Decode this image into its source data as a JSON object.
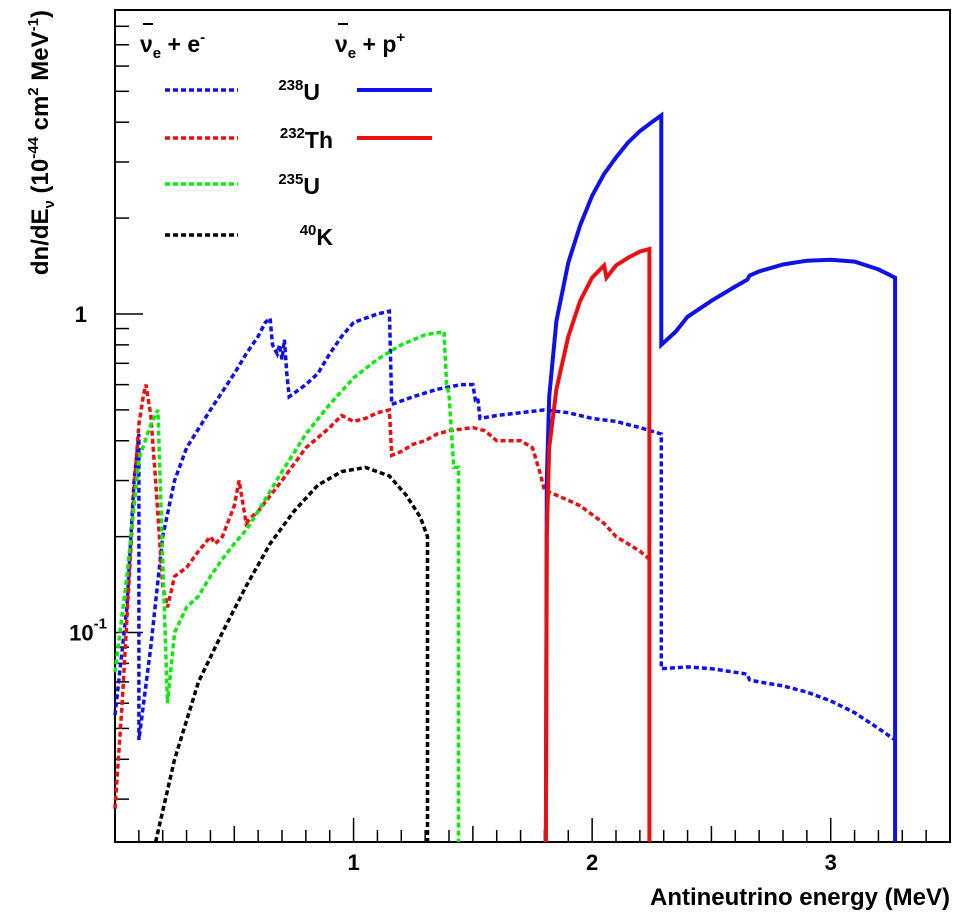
{
  "chart_data": {
    "type": "line",
    "xlabel": "Antineutrino energy (MeV)",
    "ylabel_parts": {
      "main": "dn/dE",
      "sub": "ν",
      "mid": " (10",
      "exp1": "-44",
      "cm": " cm",
      "exp2": "2",
      "mev": " MeV",
      "exp3": "-1",
      "end": ")"
    },
    "xlim": [
      0.0,
      3.5
    ],
    "ylim": [
      0.022,
      9.0
    ],
    "yscale": "log",
    "x_ticks": [
      {
        "value": 1,
        "label": "1"
      },
      {
        "value": 2,
        "label": "2"
      },
      {
        "value": 3,
        "label": "3"
      }
    ],
    "y_ticks": [
      {
        "value": 1,
        "label": "1"
      },
      {
        "value": 0.1,
        "label": "10",
        "exp": "-1"
      }
    ],
    "legend": {
      "position": "top-left",
      "col_headers": [
        {
          "base": "ν",
          "sub": "e",
          "rest": " + e",
          "sup": "-"
        },
        {
          "base": "ν",
          "sub": "e",
          "rest": " + p",
          "sup": "+"
        }
      ],
      "rows": [
        {
          "isotope_mass": "238",
          "isotope_symbol": "U",
          "color": "#1010e8",
          "has_ibd": true
        },
        {
          "isotope_mass": "232",
          "isotope_symbol": "Th",
          "color": "#e81010",
          "has_ibd": true
        },
        {
          "isotope_mass": "235",
          "isotope_symbol": "U",
          "color": "#10e810",
          "has_ibd": false
        },
        {
          "isotope_mass": "40",
          "isotope_symbol": "K",
          "color": "#000000",
          "has_ibd": false
        }
      ]
    },
    "series": [
      {
        "isotope": "238U",
        "process": "elastic",
        "style": "dashed",
        "color": "#1010e8",
        "points": [
          [
            0.0,
            0.055
          ],
          [
            0.05,
            0.12
          ],
          [
            0.08,
            0.3
          ],
          [
            0.1,
            0.42
          ],
          [
            0.1,
            0.046
          ],
          [
            0.15,
            0.09
          ],
          [
            0.2,
            0.2
          ],
          [
            0.25,
            0.3
          ],
          [
            0.3,
            0.38
          ],
          [
            0.4,
            0.5
          ],
          [
            0.5,
            0.65
          ],
          [
            0.55,
            0.75
          ],
          [
            0.6,
            0.85
          ],
          [
            0.63,
            0.94
          ],
          [
            0.65,
            0.97
          ],
          [
            0.66,
            0.8
          ],
          [
            0.68,
            0.75
          ],
          [
            0.69,
            0.8
          ],
          [
            0.7,
            0.72
          ],
          [
            0.71,
            0.83
          ],
          [
            0.72,
            0.65
          ],
          [
            0.73,
            0.55
          ],
          [
            0.8,
            0.6
          ],
          [
            0.85,
            0.65
          ],
          [
            0.9,
            0.75
          ],
          [
            0.95,
            0.85
          ],
          [
            1.0,
            0.94
          ],
          [
            1.05,
            0.97
          ],
          [
            1.1,
            1.0
          ],
          [
            1.15,
            1.02
          ],
          [
            1.16,
            0.52
          ],
          [
            1.25,
            0.55
          ],
          [
            1.35,
            0.58
          ],
          [
            1.45,
            0.6
          ],
          [
            1.5,
            0.6
          ],
          [
            1.51,
            0.54
          ],
          [
            1.52,
            0.55
          ],
          [
            1.53,
            0.47
          ],
          [
            1.6,
            0.48
          ],
          [
            1.7,
            0.49
          ],
          [
            1.8,
            0.5
          ],
          [
            1.9,
            0.49
          ],
          [
            2.0,
            0.47
          ],
          [
            2.1,
            0.46
          ],
          [
            2.2,
            0.44
          ],
          [
            2.29,
            0.42
          ],
          [
            2.29,
            0.077
          ],
          [
            2.4,
            0.078
          ],
          [
            2.5,
            0.077
          ],
          [
            2.6,
            0.075
          ],
          [
            2.65,
            0.074
          ],
          [
            2.66,
            0.071
          ],
          [
            2.7,
            0.07
          ],
          [
            2.8,
            0.068
          ],
          [
            2.9,
            0.065
          ],
          [
            3.0,
            0.061
          ],
          [
            3.1,
            0.056
          ],
          [
            3.2,
            0.05
          ],
          [
            3.27,
            0.046
          ],
          [
            3.27,
            0.022
          ]
        ]
      },
      {
        "isotope": "232Th",
        "process": "elastic",
        "style": "dashed",
        "color": "#e81010",
        "points": [
          [
            0.0,
            0.028
          ],
          [
            0.03,
            0.06
          ],
          [
            0.06,
            0.15
          ],
          [
            0.08,
            0.28
          ],
          [
            0.1,
            0.45
          ],
          [
            0.12,
            0.56
          ],
          [
            0.13,
            0.6
          ],
          [
            0.15,
            0.48
          ],
          [
            0.17,
            0.3
          ],
          [
            0.2,
            0.14
          ],
          [
            0.22,
            0.12
          ],
          [
            0.25,
            0.15
          ],
          [
            0.3,
            0.16
          ],
          [
            0.35,
            0.18
          ],
          [
            0.4,
            0.2
          ],
          [
            0.42,
            0.19
          ],
          [
            0.45,
            0.2
          ],
          [
            0.5,
            0.25
          ],
          [
            0.52,
            0.3
          ],
          [
            0.55,
            0.22
          ],
          [
            0.57,
            0.23
          ],
          [
            0.6,
            0.24
          ],
          [
            0.7,
            0.3
          ],
          [
            0.8,
            0.38
          ],
          [
            0.9,
            0.44
          ],
          [
            0.95,
            0.48
          ],
          [
            1.0,
            0.46
          ],
          [
            1.05,
            0.47
          ],
          [
            1.1,
            0.49
          ],
          [
            1.15,
            0.5
          ],
          [
            1.16,
            0.36
          ],
          [
            1.2,
            0.37
          ],
          [
            1.25,
            0.39
          ],
          [
            1.3,
            0.4
          ],
          [
            1.35,
            0.42
          ],
          [
            1.4,
            0.43
          ],
          [
            1.5,
            0.44
          ],
          [
            1.55,
            0.43
          ],
          [
            1.6,
            0.4
          ],
          [
            1.7,
            0.4
          ],
          [
            1.75,
            0.38
          ],
          [
            1.78,
            0.32
          ],
          [
            1.8,
            0.28
          ],
          [
            1.85,
            0.27
          ],
          [
            1.9,
            0.26
          ],
          [
            1.95,
            0.25
          ],
          [
            2.05,
            0.22
          ],
          [
            2.1,
            0.2
          ],
          [
            2.15,
            0.19
          ],
          [
            2.2,
            0.18
          ],
          [
            2.24,
            0.17
          ]
        ]
      },
      {
        "isotope": "235U",
        "process": "elastic",
        "style": "dashed",
        "color": "#10e810",
        "points": [
          [
            0.0,
            0.075
          ],
          [
            0.05,
            0.15
          ],
          [
            0.1,
            0.35
          ],
          [
            0.15,
            0.45
          ],
          [
            0.18,
            0.5
          ],
          [
            0.2,
            0.17
          ],
          [
            0.22,
            0.06
          ],
          [
            0.25,
            0.1
          ],
          [
            0.3,
            0.12
          ],
          [
            0.35,
            0.13
          ],
          [
            0.4,
            0.15
          ],
          [
            0.45,
            0.17
          ],
          [
            0.5,
            0.19
          ],
          [
            0.55,
            0.21
          ],
          [
            0.6,
            0.24
          ],
          [
            0.7,
            0.32
          ],
          [
            0.8,
            0.42
          ],
          [
            0.9,
            0.52
          ],
          [
            1.0,
            0.63
          ],
          [
            1.1,
            0.72
          ],
          [
            1.2,
            0.8
          ],
          [
            1.3,
            0.86
          ],
          [
            1.38,
            0.88
          ],
          [
            1.38,
            0.85
          ],
          [
            1.39,
            0.6
          ],
          [
            1.4,
            0.56
          ],
          [
            1.42,
            0.33
          ],
          [
            1.44,
            0.33
          ],
          [
            1.44,
            0.022
          ]
        ]
      },
      {
        "isotope": "40K",
        "process": "elastic",
        "style": "dashed",
        "color": "#000000",
        "points": [
          [
            0.17,
            0.022
          ],
          [
            0.25,
            0.04
          ],
          [
            0.35,
            0.07
          ],
          [
            0.45,
            0.1
          ],
          [
            0.55,
            0.14
          ],
          [
            0.65,
            0.19
          ],
          [
            0.75,
            0.24
          ],
          [
            0.85,
            0.29
          ],
          [
            0.95,
            0.32
          ],
          [
            1.05,
            0.33
          ],
          [
            1.15,
            0.31
          ],
          [
            1.22,
            0.27
          ],
          [
            1.28,
            0.23
          ],
          [
            1.31,
            0.2
          ],
          [
            1.31,
            0.022
          ]
        ]
      },
      {
        "isotope": "238U",
        "process": "ibd",
        "style": "solid",
        "color": "#1010e8",
        "points": [
          [
            1.806,
            0.022
          ],
          [
            1.81,
            0.3
          ],
          [
            1.82,
            0.55
          ],
          [
            1.85,
            0.95
          ],
          [
            1.9,
            1.45
          ],
          [
            1.95,
            1.9
          ],
          [
            2.0,
            2.35
          ],
          [
            2.05,
            2.75
          ],
          [
            2.1,
            3.1
          ],
          [
            2.15,
            3.45
          ],
          [
            2.2,
            3.75
          ],
          [
            2.25,
            4.0
          ],
          [
            2.29,
            4.2
          ],
          [
            2.29,
            0.8
          ],
          [
            2.35,
            0.88
          ],
          [
            2.4,
            0.98
          ],
          [
            2.5,
            1.1
          ],
          [
            2.6,
            1.22
          ],
          [
            2.65,
            1.28
          ],
          [
            2.66,
            1.32
          ],
          [
            2.7,
            1.36
          ],
          [
            2.8,
            1.43
          ],
          [
            2.9,
            1.47
          ],
          [
            3.0,
            1.48
          ],
          [
            3.1,
            1.46
          ],
          [
            3.2,
            1.38
          ],
          [
            3.27,
            1.3
          ],
          [
            3.27,
            0.022
          ]
        ]
      },
      {
        "isotope": "232Th",
        "process": "ibd",
        "style": "solid",
        "color": "#e81010",
        "points": [
          [
            1.806,
            0.022
          ],
          [
            1.81,
            0.2
          ],
          [
            1.82,
            0.38
          ],
          [
            1.85,
            0.58
          ],
          [
            1.9,
            0.85
          ],
          [
            1.95,
            1.1
          ],
          [
            2.0,
            1.3
          ],
          [
            2.05,
            1.42
          ],
          [
            2.06,
            1.3
          ],
          [
            2.1,
            1.42
          ],
          [
            2.15,
            1.5
          ],
          [
            2.2,
            1.57
          ],
          [
            2.24,
            1.6
          ],
          [
            2.24,
            0.022
          ]
        ]
      }
    ]
  }
}
